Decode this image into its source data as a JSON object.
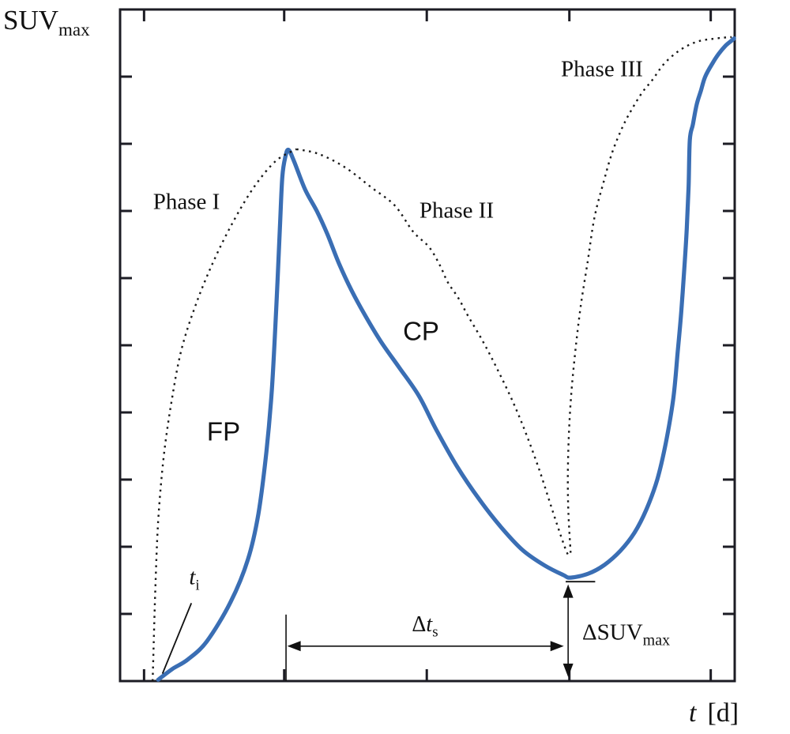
{
  "colors": {
    "curve": "#3a6eb4",
    "dotted": "#1a1a1a",
    "axis": "#1c1c24",
    "annotation": "#111111",
    "text": "#111111",
    "background": "#ffffff"
  },
  "chart_data": {
    "type": "line",
    "title": "",
    "xlabel": "t [d]",
    "ylabel": "SUVmax",
    "axes_note": "schematic plot, boxed frame with inward unlabeled ticks on all four sides, no grid, no legend",
    "layout": {
      "grid": false,
      "legend": "none",
      "x_ticks": [
        0.039,
        0.267,
        0.499,
        0.731,
        0.961
      ],
      "y_ticks": [
        0.1,
        0.2,
        0.3,
        0.4,
        0.5,
        0.6,
        0.7,
        0.8,
        0.9
      ]
    },
    "labels": {
      "y_axis": {
        "main": "SUV",
        "sub": "max"
      },
      "x_axis": {
        "var": "t",
        "unit": "[d]"
      },
      "phase1": "Phase I",
      "phase2": "Phase II",
      "phase3": "Phase III",
      "fp": "FP",
      "cp": "CP",
      "ti": {
        "var": "t",
        "sub": "i"
      },
      "delta_ts": {
        "delta": "Δ",
        "var": "t",
        "sub": "s"
      },
      "delta_suv": {
        "delta": "Δ",
        "main": "SUV",
        "sub": "max"
      }
    },
    "series": [
      {
        "name": "SUVmax course (solid)",
        "slug": "suvmax-curve",
        "style": "solid",
        "color": "#3a6eb4",
        "width": 5.2,
        "cap": "round",
        "points": [
          [
            0.062,
            0.002
          ],
          [
            0.085,
            0.018
          ],
          [
            0.11,
            0.032
          ],
          [
            0.141,
            0.059
          ],
          [
            0.18,
            0.118
          ],
          [
            0.208,
            0.181
          ],
          [
            0.225,
            0.249
          ],
          [
            0.238,
            0.341
          ],
          [
            0.247,
            0.435
          ],
          [
            0.254,
            0.553
          ],
          [
            0.26,
            0.675
          ],
          [
            0.264,
            0.751
          ],
          [
            0.269,
            0.781
          ],
          [
            0.274,
            0.791
          ],
          [
            0.283,
            0.774
          ],
          [
            0.301,
            0.732
          ],
          [
            0.32,
            0.7
          ],
          [
            0.337,
            0.666
          ],
          [
            0.356,
            0.622
          ],
          [
            0.377,
            0.581
          ],
          [
            0.399,
            0.544
          ],
          [
            0.424,
            0.506
          ],
          [
            0.454,
            0.467
          ],
          [
            0.486,
            0.425
          ],
          [
            0.514,
            0.375
          ],
          [
            0.548,
            0.32
          ],
          [
            0.584,
            0.271
          ],
          [
            0.62,
            0.229
          ],
          [
            0.655,
            0.195
          ],
          [
            0.691,
            0.172
          ],
          [
            0.721,
            0.158
          ],
          [
            0.733,
            0.154
          ],
          [
            0.762,
            0.16
          ],
          [
            0.788,
            0.173
          ],
          [
            0.814,
            0.194
          ],
          [
            0.837,
            0.221
          ],
          [
            0.856,
            0.255
          ],
          [
            0.874,
            0.3
          ],
          [
            0.888,
            0.355
          ],
          [
            0.9,
            0.42
          ],
          [
            0.907,
            0.487
          ],
          [
            0.913,
            0.549
          ],
          [
            0.918,
            0.614
          ],
          [
            0.922,
            0.673
          ],
          [
            0.925,
            0.738
          ],
          [
            0.927,
            0.806
          ],
          [
            0.932,
            0.829
          ],
          [
            0.938,
            0.858
          ],
          [
            0.945,
            0.879
          ],
          [
            0.952,
            0.9
          ],
          [
            0.964,
            0.92
          ],
          [
            0.974,
            0.934
          ],
          [
            0.985,
            0.946
          ],
          [
            0.994,
            0.953
          ],
          [
            0.999,
            0.957
          ]
        ]
      },
      {
        "name": "Phase I envelope (dotted)",
        "slug": "phase1-envelope-curve",
        "style": "dotted",
        "color": "#1a1a1a",
        "width": 2.4,
        "cap": "butt",
        "dash": "2.5 5.5",
        "points": [
          [
            0.053,
            0.0
          ],
          [
            0.057,
            0.126
          ],
          [
            0.062,
            0.238
          ],
          [
            0.071,
            0.334
          ],
          [
            0.084,
            0.418
          ],
          [
            0.1,
            0.494
          ],
          [
            0.123,
            0.56
          ],
          [
            0.152,
            0.625
          ],
          [
            0.184,
            0.684
          ],
          [
            0.219,
            0.737
          ],
          [
            0.254,
            0.775
          ],
          [
            0.287,
            0.792
          ]
        ]
      },
      {
        "name": "Phase II envelope (dotted)",
        "slug": "phase2-envelope-curve",
        "style": "dotted",
        "color": "#1a1a1a",
        "width": 2.4,
        "cap": "butt",
        "dash": "2.5 5.5",
        "points": [
          [
            0.287,
            0.792
          ],
          [
            0.323,
            0.785
          ],
          [
            0.366,
            0.765
          ],
          [
            0.409,
            0.735
          ],
          [
            0.447,
            0.708
          ],
          [
            0.477,
            0.669
          ],
          [
            0.503,
            0.646
          ],
          [
            0.521,
            0.618
          ],
          [
            0.533,
            0.594
          ],
          [
            0.55,
            0.571
          ],
          [
            0.566,
            0.544
          ],
          [
            0.589,
            0.508
          ],
          [
            0.614,
            0.464
          ],
          [
            0.64,
            0.414
          ],
          [
            0.662,
            0.365
          ],
          [
            0.683,
            0.312
          ],
          [
            0.701,
            0.261
          ],
          [
            0.715,
            0.222
          ],
          [
            0.725,
            0.196
          ],
          [
            0.731,
            0.184
          ]
        ]
      },
      {
        "name": "Phase III envelope (dotted)",
        "slug": "phase3-envelope-curve",
        "style": "dotted",
        "color": "#1a1a1a",
        "width": 2.4,
        "cap": "butt",
        "dash": "2.5 5.5",
        "points": [
          [
            0.733,
            0.191
          ],
          [
            0.729,
            0.261
          ],
          [
            0.729,
            0.335
          ],
          [
            0.733,
            0.414
          ],
          [
            0.74,
            0.485
          ],
          [
            0.749,
            0.555
          ],
          [
            0.761,
            0.626
          ],
          [
            0.772,
            0.691
          ],
          [
            0.787,
            0.744
          ],
          [
            0.801,
            0.788
          ],
          [
            0.818,
            0.826
          ],
          [
            0.833,
            0.852
          ],
          [
            0.85,
            0.877
          ],
          [
            0.866,
            0.895
          ],
          [
            0.884,
            0.918
          ],
          [
            0.904,
            0.935
          ],
          [
            0.923,
            0.946
          ],
          [
            0.942,
            0.953
          ],
          [
            0.962,
            0.956
          ],
          [
            0.981,
            0.958
          ],
          [
            0.995,
            0.959
          ]
        ]
      }
    ],
    "annotations": {
      "ti_line": {
        "x1": 0.069,
        "y1": 0.011,
        "x2": 0.116,
        "y2": 0.116
      },
      "ref_vline": {
        "x": 0.27,
        "y1": 0.0,
        "y2": 0.099
      },
      "span_arrow": {
        "y": 0.052,
        "x1": 0.272,
        "x2": 0.722
      },
      "drop_arrow": {
        "x": 0.729,
        "y_bottom": 0.006,
        "y_top": 0.144
      },
      "min_level_line": {
        "y": 0.148,
        "x1": 0.725,
        "x2": 0.773
      }
    }
  }
}
